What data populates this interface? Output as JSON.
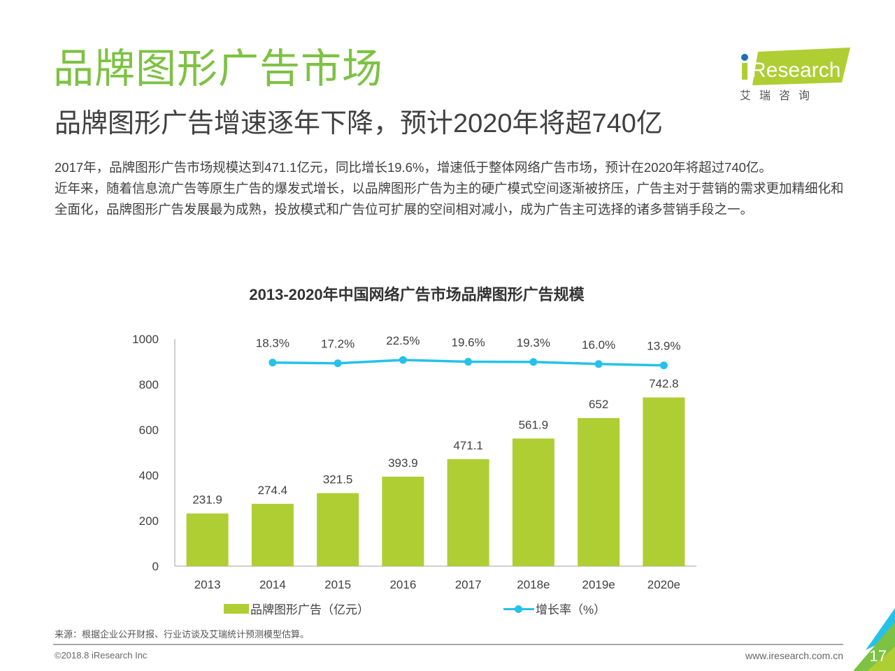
{
  "header": {
    "title": "品牌图形广告市场",
    "subtitle": "品牌图形广告增速逐年下降，预计2020年将超740亿"
  },
  "logo": {
    "brand": "iResearch",
    "brand_cn": "艾 瑞 咨 询",
    "colors": {
      "green": "#aece33",
      "blue": "#1b6fb5"
    }
  },
  "body": {
    "paragraphs": [
      "2017年，品牌图形广告市场规模达到471.1亿元，同比增长19.6%，增速低于整体网络广告市场，预计在2020年将超过740亿。",
      "近年来，随着信息流广告等原生广告的爆发式增长，以品牌图形广告为主的硬广模式空间逐渐被挤压，广告主对于营销的需求更加精细化和全面化，品牌图形广告发展最为成熟，投放模式和广告位可扩展的空间相对减小，成为广告主可选择的诸多营销手段之一。"
    ]
  },
  "chart_data": {
    "type": "bar",
    "title": "2013-2020年中国网络广告市场品牌图形广告规模",
    "categories": [
      "2013",
      "2014",
      "2015",
      "2016",
      "2017",
      "2018e",
      "2019e",
      "2020e"
    ],
    "series": [
      {
        "name": "品牌图形广告（亿元）",
        "type": "bar",
        "color": "#aece33",
        "values": [
          231.9,
          274.4,
          321.5,
          393.9,
          471.1,
          561.9,
          652,
          742.8
        ],
        "labels": [
          "231.9",
          "274.4",
          "321.5",
          "393.9",
          "471.1",
          "561.9",
          "652",
          "742.8"
        ]
      },
      {
        "name": "增长率（%）",
        "type": "line",
        "color": "#26c1ea",
        "values": [
          null,
          18.3,
          17.2,
          22.5,
          19.6,
          19.3,
          16.0,
          13.9
        ],
        "labels": [
          "",
          "18.3%",
          "17.2%",
          "22.5%",
          "19.6%",
          "19.3%",
          "16.0%",
          "13.9%"
        ]
      }
    ],
    "yaxis": {
      "ylim": [
        0,
        1000
      ],
      "ticks": [
        0,
        200,
        400,
        600,
        800,
        1000
      ]
    },
    "xlabel": "",
    "ylabel": "",
    "grid": false,
    "legend": "bottom"
  },
  "footer": {
    "source": "来源：根据企业公开财报、行业访谈及艾瑞统计预测模型估算。",
    "copyright": "©2018.8 iResearch Inc",
    "website": "www.iresearch.com.cn",
    "page_number": "17"
  }
}
